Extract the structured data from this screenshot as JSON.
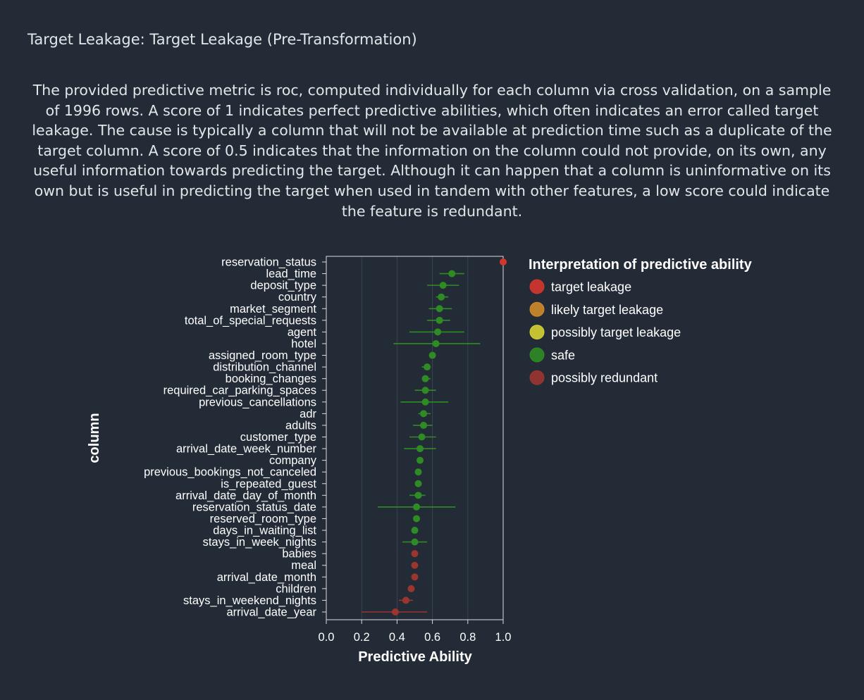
{
  "page": {
    "title": "Target Leakage: Target Leakage (Pre-Transformation)",
    "description": "The provided predictive metric is roc, computed individually for each column via cross validation, on a sample of 1996 rows. A score of 1 indicates perfect predictive abilities, which often indicates an error called target leakage. The cause is typically a column that will not be available at prediction time such as a duplicate of the target column. A score of 0.5 indicates that the information on the column could not provide, on its own, any useful information towards predicting the target. Although it can happen that a column is uninformative on its own but is useful in predicting the target when used in tandem with other features, a low score could indicate the feature is redundant."
  },
  "chart_data": {
    "type": "scatter",
    "xlabel": "Predictive Ability",
    "ylabel": "column",
    "xlim": [
      0,
      1
    ],
    "x_ticks": [
      "0.0",
      "0.2",
      "0.4",
      "0.6",
      "0.8",
      "1.0"
    ],
    "grid": true,
    "legend": {
      "title": "Interpretation of predictive ability",
      "placement": "right",
      "entries": [
        {
          "label": "target leakage",
          "color": "#d5362c"
        },
        {
          "label": "likely target leakage",
          "color": "#d08a2b"
        },
        {
          "label": "possibly target leakage",
          "color": "#d4d332"
        },
        {
          "label": "safe",
          "color": "#2f8c25"
        },
        {
          "label": "possibly redundant",
          "color": "#9b3530"
        }
      ]
    },
    "points": [
      {
        "column": "reservation_status",
        "value": 1.0,
        "low": 1.0,
        "high": 1.0,
        "category": "target leakage"
      },
      {
        "column": "lead_time",
        "value": 0.71,
        "low": 0.64,
        "high": 0.78,
        "category": "safe"
      },
      {
        "column": "deposit_type",
        "value": 0.66,
        "low": 0.57,
        "high": 0.75,
        "category": "safe"
      },
      {
        "column": "country",
        "value": 0.65,
        "low": 0.62,
        "high": 0.69,
        "category": "safe"
      },
      {
        "column": "market_segment",
        "value": 0.64,
        "low": 0.58,
        "high": 0.71,
        "category": "safe"
      },
      {
        "column": "total_of_special_requests",
        "value": 0.64,
        "low": 0.57,
        "high": 0.7,
        "category": "safe"
      },
      {
        "column": "agent",
        "value": 0.63,
        "low": 0.47,
        "high": 0.78,
        "category": "safe"
      },
      {
        "column": "hotel",
        "value": 0.62,
        "low": 0.38,
        "high": 0.87,
        "category": "safe"
      },
      {
        "column": "assigned_room_type",
        "value": 0.6,
        "low": 0.59,
        "high": 0.61,
        "category": "safe"
      },
      {
        "column": "distribution_channel",
        "value": 0.57,
        "low": 0.54,
        "high": 0.59,
        "category": "safe"
      },
      {
        "column": "booking_changes",
        "value": 0.56,
        "low": 0.54,
        "high": 0.59,
        "category": "safe"
      },
      {
        "column": "required_car_parking_spaces",
        "value": 0.56,
        "low": 0.5,
        "high": 0.62,
        "category": "safe"
      },
      {
        "column": "previous_cancellations",
        "value": 0.56,
        "low": 0.42,
        "high": 0.69,
        "category": "safe"
      },
      {
        "column": "adr",
        "value": 0.55,
        "low": 0.52,
        "high": 0.59,
        "category": "safe"
      },
      {
        "column": "adults",
        "value": 0.55,
        "low": 0.49,
        "high": 0.6,
        "category": "safe"
      },
      {
        "column": "customer_type",
        "value": 0.54,
        "low": 0.47,
        "high": 0.62,
        "category": "safe"
      },
      {
        "column": "arrival_date_week_number",
        "value": 0.53,
        "low": 0.44,
        "high": 0.62,
        "category": "safe"
      },
      {
        "column": "company",
        "value": 0.53,
        "low": 0.52,
        "high": 0.53,
        "category": "safe"
      },
      {
        "column": "previous_bookings_not_canceled",
        "value": 0.52,
        "low": 0.51,
        "high": 0.53,
        "category": "safe"
      },
      {
        "column": "is_repeated_guest",
        "value": 0.52,
        "low": 0.51,
        "high": 0.53,
        "category": "safe"
      },
      {
        "column": "arrival_date_day_of_month",
        "value": 0.52,
        "low": 0.47,
        "high": 0.56,
        "category": "safe"
      },
      {
        "column": "reservation_status_date",
        "value": 0.51,
        "low": 0.29,
        "high": 0.73,
        "category": "safe"
      },
      {
        "column": "reserved_room_type",
        "value": 0.51,
        "low": 0.5,
        "high": 0.52,
        "category": "safe"
      },
      {
        "column": "days_in_waiting_list",
        "value": 0.5,
        "low": 0.49,
        "high": 0.51,
        "category": "safe"
      },
      {
        "column": "stays_in_week_nights",
        "value": 0.5,
        "low": 0.43,
        "high": 0.57,
        "category": "safe"
      },
      {
        "column": "babies",
        "value": 0.5,
        "low": 0.49,
        "high": 0.5,
        "category": "possibly redundant"
      },
      {
        "column": "meal",
        "value": 0.5,
        "low": 0.49,
        "high": 0.5,
        "category": "possibly redundant"
      },
      {
        "column": "arrival_date_month",
        "value": 0.5,
        "low": 0.49,
        "high": 0.5,
        "category": "possibly redundant"
      },
      {
        "column": "children",
        "value": 0.48,
        "low": 0.47,
        "high": 0.5,
        "category": "possibly redundant"
      },
      {
        "column": "stays_in_weekend_nights",
        "value": 0.45,
        "low": 0.41,
        "high": 0.49,
        "category": "possibly redundant"
      },
      {
        "column": "arrival_date_year",
        "value": 0.39,
        "low": 0.2,
        "high": 0.57,
        "category": "possibly redundant"
      }
    ]
  }
}
